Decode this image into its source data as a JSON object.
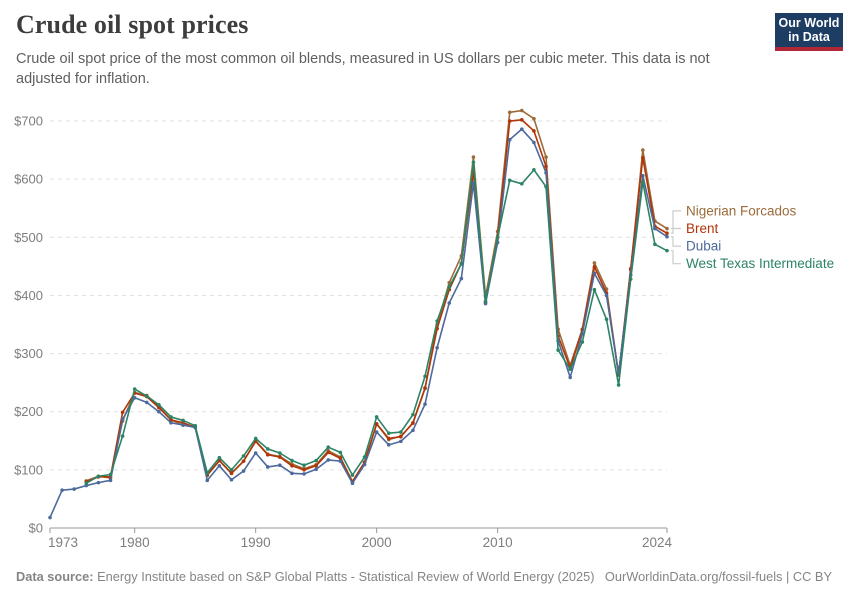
{
  "header": {
    "title": "Crude oil spot prices",
    "subtitle": "Crude oil spot price of the most common oil blends, measured in US dollars per cubic meter. This data is not adjusted for inflation.",
    "logo": {
      "line1": "Our World",
      "line2": "in Data",
      "bg_color": "#1d3d63",
      "accent_color": "#b12737"
    }
  },
  "footer": {
    "source_label": "Data source:",
    "source_text": " Energy Institute based on S&P Global Platts - Statistical Review of World Energy (2025)",
    "attribution": "OurWorldinData.org/fossil-fuels | CC BY"
  },
  "chart_data": {
    "type": "line",
    "title": "Crude oil spot prices",
    "ylabel": "US dollars per cubic meter",
    "unit_prefix": "$",
    "xlim": [
      1973,
      2024
    ],
    "ylim": [
      0,
      735
    ],
    "x_ticks": [
      1973,
      1980,
      1990,
      2000,
      2010,
      2024
    ],
    "y_ticks": [
      0,
      100,
      200,
      300,
      400,
      500,
      600,
      700
    ],
    "grid": "dashed-horizontal",
    "legend_position": "right-of-line-ends",
    "axis_color": "#999999",
    "grid_color": "#e2e2e2",
    "tick_label_color": "#7e7e7e",
    "connector_color": "#cccccc",
    "series": [
      {
        "name": "Nigerian Forcados",
        "color": "#9c6b3b",
        "start_year": 1976,
        "values": [
          81,
          89,
          86,
          184,
          233,
          228,
          209,
          186,
          177,
          175,
          91,
          116,
          94,
          115,
          150,
          127,
          123,
          110,
          102,
          109,
          133,
          122,
          79,
          113,
          179,
          152,
          158,
          180,
          240,
          350,
          422,
          468,
          638,
          398,
          510,
          715,
          718,
          704,
          638,
          342,
          280,
          342,
          456,
          411,
          264,
          444,
          650,
          528,
          515
        ]
      },
      {
        "name": "Brent",
        "color": "#b13507",
        "start_year": 1976,
        "values": [
          80,
          88,
          88,
          199,
          232,
          226,
          207,
          186,
          181,
          173,
          91,
          116,
          94,
          115,
          149,
          126,
          122,
          107,
          100,
          107,
          130,
          120,
          80,
          113,
          179,
          154,
          157,
          181,
          241,
          343,
          410,
          455,
          612,
          388,
          500,
          700,
          702,
          683,
          622,
          330,
          275,
          341,
          449,
          404,
          263,
          446,
          637,
          519,
          507
        ]
      },
      {
        "name": "Dubai",
        "color": "#4c6a9c",
        "start_year": 1973,
        "values": [
          18,
          65,
          67,
          73,
          78,
          82,
          187,
          224,
          216,
          200,
          181,
          177,
          173,
          82,
          107,
          83,
          98,
          129,
          105,
          108,
          94,
          93,
          101,
          117,
          115,
          77,
          109,
          165,
          143,
          149,
          168,
          213,
          310,
          387,
          429,
          593,
          386,
          491,
          668,
          686,
          663,
          611,
          322,
          259,
          334,
          438,
          400,
          266,
          435,
          606,
          515,
          501
        ]
      },
      {
        "name": "West Texas Intermediate",
        "color": "#2c8465",
        "start_year": 1976,
        "values": [
          77,
          89,
          92,
          158,
          239,
          227,
          212,
          191,
          185,
          176,
          95,
          121,
          100,
          124,
          154,
          136,
          129,
          116,
          108,
          116,
          139,
          130,
          91,
          122,
          191,
          163,
          165,
          195,
          261,
          356,
          415,
          454,
          629,
          390,
          500,
          598,
          592,
          616,
          587,
          306,
          273,
          320,
          410,
          359,
          246,
          428,
          595,
          488,
          477
        ]
      }
    ]
  }
}
